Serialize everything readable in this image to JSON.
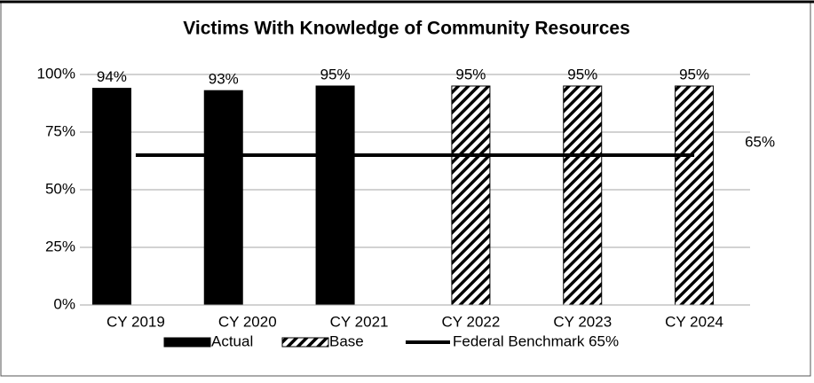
{
  "chart_data": {
    "type": "bar",
    "title": "Victims With Knowledge of Community Resources",
    "categories": [
      "CY 2019",
      "CY 2020",
      "CY 2021",
      "CY 2022",
      "CY 2023",
      "CY 2024"
    ],
    "series": [
      {
        "name": "Actual",
        "color": "#000000",
        "values": [
          94,
          93,
          95,
          null,
          null,
          null
        ],
        "value_labels": [
          "94%",
          "93%",
          "95%",
          null,
          null,
          null
        ]
      },
      {
        "name": "Base",
        "color": "#000000",
        "pattern": "hatch",
        "values": [
          null,
          null,
          null,
          95,
          95,
          95
        ],
        "value_labels": [
          null,
          null,
          null,
          "95%",
          "95%",
          "95%"
        ]
      },
      {
        "name": "Federal Benchmark 65%",
        "color": "#000000",
        "type": "line",
        "values": [
          65,
          65,
          65,
          65,
          65,
          65
        ],
        "value_labels": [
          null,
          null,
          null,
          null,
          null,
          "65%"
        ]
      }
    ],
    "ylim": [
      0,
      100
    ],
    "yticks": [
      {
        "value": 0,
        "label": "0%"
      },
      {
        "value": 25,
        "label": "25%"
      },
      {
        "value": 50,
        "label": "50%"
      },
      {
        "value": 75,
        "label": "75%"
      },
      {
        "value": 100,
        "label": "100%"
      }
    ],
    "grid": true,
    "legend": "bottom"
  }
}
